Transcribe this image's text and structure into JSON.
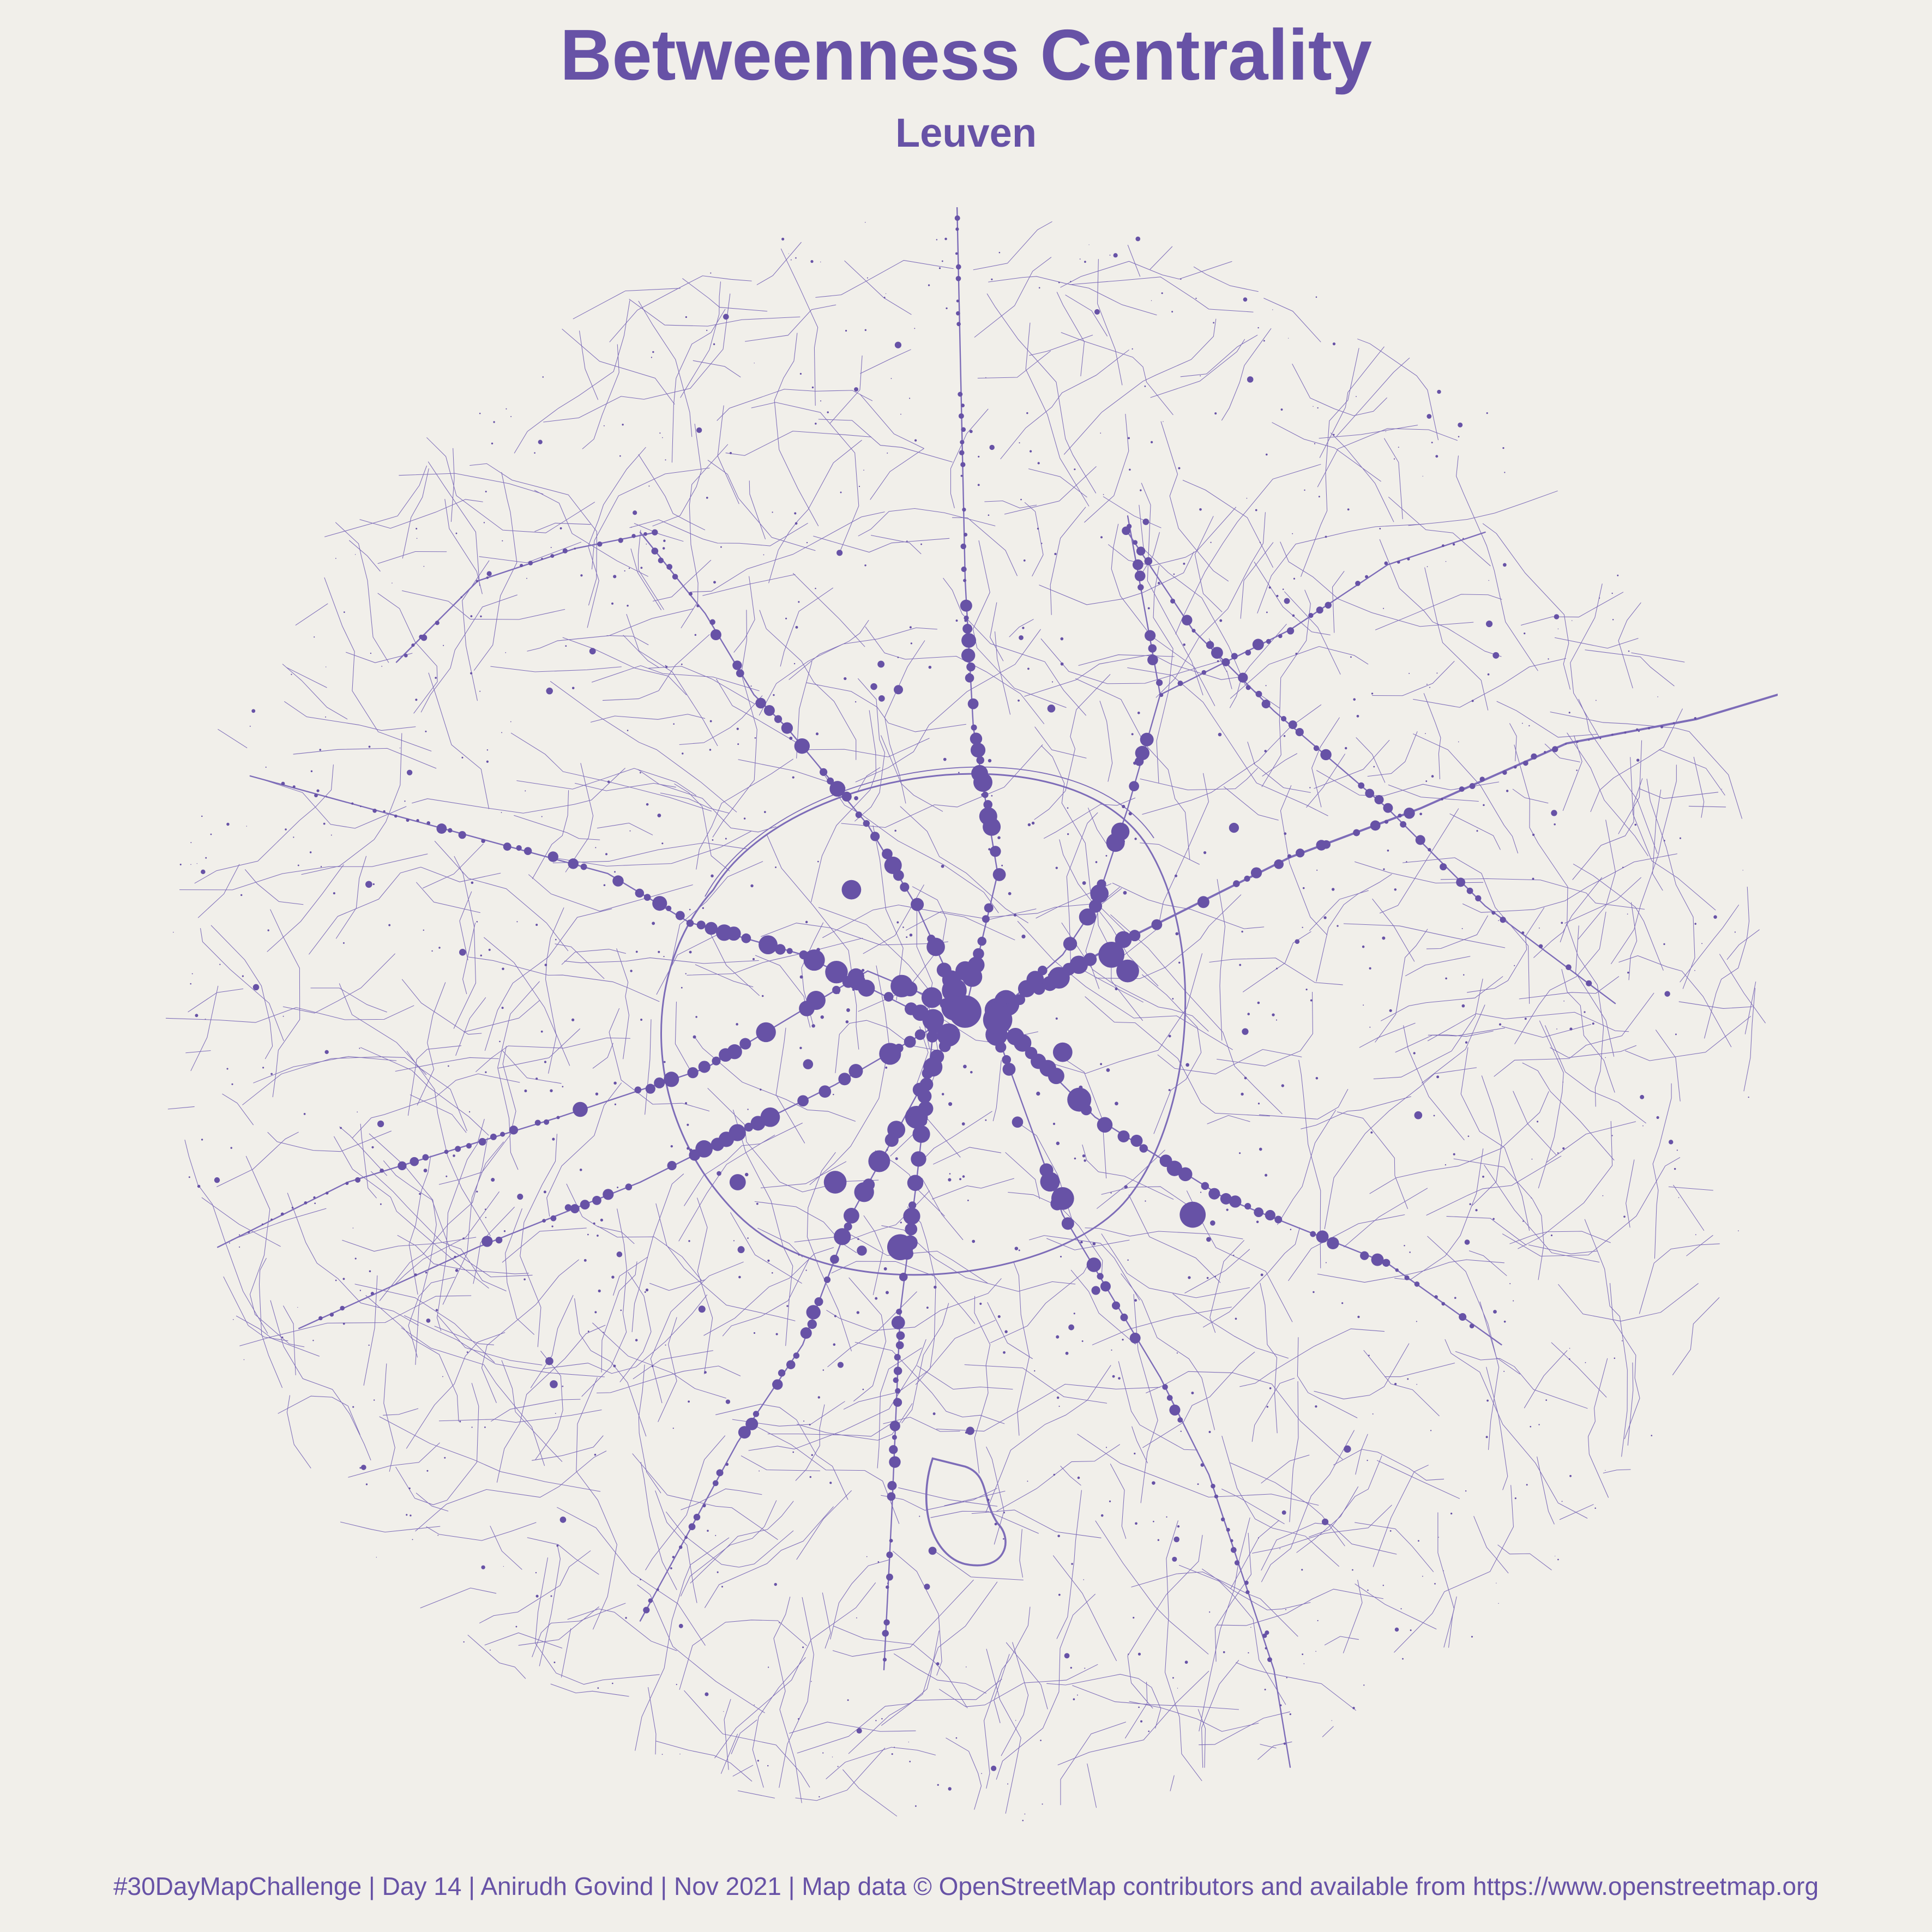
{
  "title": "Betweenness Centrality",
  "subtitle": "Leuven",
  "caption": "#30DayMapChallenge | Day 14 | Anirudh Govind | Nov 2021 | Map data © OpenStreetMap contributors and available from https://www.openstreetmap.org",
  "colors": {
    "background": "#f1efea",
    "accent": "#6752a6",
    "street": "#7d6cb8"
  },
  "map": {
    "type": "street-network-centrality",
    "place": "Leuven",
    "shape": "circle",
    "node_encoding": "circle size = betweenness centrality"
  }
}
